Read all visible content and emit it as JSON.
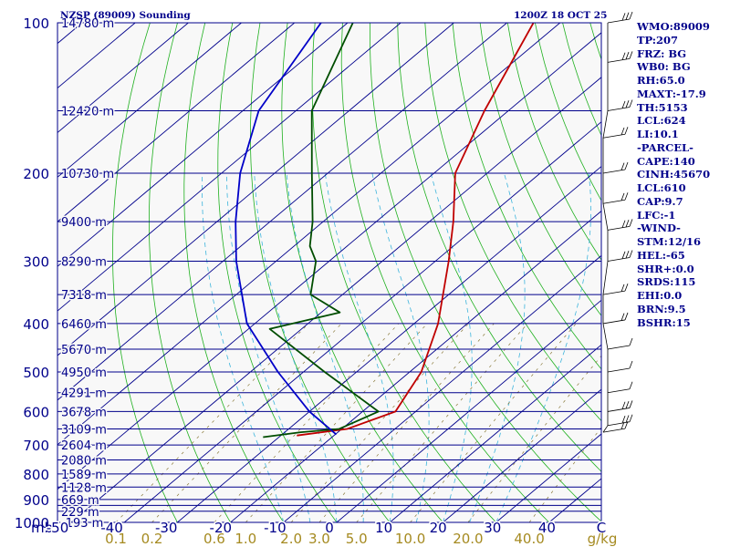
{
  "header": {
    "title": "NZSP (89009) Sounding",
    "time": "1200Z 18 OCT 25"
  },
  "colors": {
    "background": "#ffffff",
    "plot_background": "#f8f8f8",
    "isobar": "#00008b",
    "dry_adiabat": "#1fb01f",
    "moist_adiabat": "#3cb4dc",
    "mixing_ratio": "#8a7a3a",
    "temperature": "#c00000",
    "dewpoint": "#004d00",
    "parcel": "#0000c8",
    "text": "#00008b",
    "mixing_label": "#a58a20"
  },
  "indices": [
    "WMO:89009",
    "TP:207",
    "FRZ: BG",
    "WB0: BG",
    "RH:65.0",
    "MAXT:-17.9",
    "TH:5153",
    "LCL:624",
    "LI:10.1",
    "-PARCEL-",
    "CAPE:140",
    "CINH:45670",
    "LCL:610",
    "CAP:9.7",
    "LFC:-1",
    "-WIND-",
    "STM:12/16",
    "HEL:-65",
    "SHR+:0.0",
    "SRDS:115",
    "EHI:0.0",
    "BRN:9.5",
    "BSHR:15"
  ],
  "chart_data": {
    "type": "skew-t",
    "x_axis": {
      "label": "mb",
      "range": [
        -50,
        50
      ],
      "ticks": [
        "-50",
        "-40",
        "-30",
        "-20",
        "-10",
        "0",
        "10",
        "20",
        "30",
        "40",
        "C"
      ]
    },
    "y_axis": {
      "scale": "log",
      "range_hpa": [
        1000,
        100
      ],
      "ticks": [
        "100",
        "200",
        "300",
        "400",
        "500",
        "600",
        "700",
        "800",
        "900",
        "1000"
      ]
    },
    "isobars_hpa": [
      100,
      150,
      200,
      250,
      300,
      350,
      400,
      450,
      500,
      550,
      600,
      650,
      700,
      750,
      800,
      850,
      900,
      925,
      950,
      1000
    ],
    "height_labels": [
      {
        "p": 100,
        "text": "14780 m"
      },
      {
        "p": 150,
        "text": "12420 m"
      },
      {
        "p": 200,
        "text": "10730 m"
      },
      {
        "p": 250,
        "text": "9400 m"
      },
      {
        "p": 300,
        "text": "8290 m"
      },
      {
        "p": 350,
        "text": "7318 m"
      },
      {
        "p": 400,
        "text": "6460 m"
      },
      {
        "p": 450,
        "text": "5670 m"
      },
      {
        "p": 500,
        "text": "4950 m"
      },
      {
        "p": 550,
        "text": "4291 m"
      },
      {
        "p": 600,
        "text": "3678 m"
      },
      {
        "p": 650,
        "text": "3109 m"
      },
      {
        "p": 700,
        "text": "2604 m"
      },
      {
        "p": 750,
        "text": "2080 m"
      },
      {
        "p": 800,
        "text": "1589 m"
      },
      {
        "p": 850,
        "text": "1128 m"
      },
      {
        "p": 900,
        "text": "669 m"
      },
      {
        "p": 950,
        "text": "229 m"
      },
      {
        "p": 1000,
        "text": "-193 m"
      }
    ],
    "mixing_ratio_labels": [
      "0.1",
      "0.2",
      "0.6",
      "1.0",
      "2.0",
      "3.0",
      "5.0",
      "10.0",
      "20.0",
      "40.0",
      "g/kg"
    ],
    "mixing_ratio_gkg": [
      0.1,
      0.2,
      0.6,
      1.0,
      2.0,
      3.0,
      5.0,
      10.0,
      20.0,
      40.0
    ],
    "series": [
      {
        "kind": "temperature",
        "points": [
          {
            "p": 100,
            "t": -75.0
          },
          {
            "p": 150,
            "t": -64.5
          },
          {
            "p": 200,
            "t": -56.0
          },
          {
            "p": 250,
            "t": -45.5
          },
          {
            "p": 300,
            "t": -37.5
          },
          {
            "p": 400,
            "t": -25.5
          },
          {
            "p": 500,
            "t": -17.8
          },
          {
            "p": 600,
            "t": -13.8
          },
          {
            "p": 650,
            "t": -19.0
          },
          {
            "p": 670,
            "t": -27.0
          }
        ]
      },
      {
        "kind": "dewpoint",
        "points": [
          {
            "p": 100,
            "t": -109.0
          },
          {
            "p": 150,
            "t": -97.0
          },
          {
            "p": 200,
            "t": -83.0
          },
          {
            "p": 250,
            "t": -72.0
          },
          {
            "p": 280,
            "t": -67.0
          },
          {
            "p": 300,
            "t": -62.5
          },
          {
            "p": 350,
            "t": -56.0
          },
          {
            "p": 380,
            "t": -46.5
          },
          {
            "p": 410,
            "t": -56.0
          },
          {
            "p": 500,
            "t": -36.0
          },
          {
            "p": 600,
            "t": -17.0
          },
          {
            "p": 650,
            "t": -20.5
          },
          {
            "p": 660,
            "t": -27.0
          },
          {
            "p": 675,
            "t": -33.0
          }
        ]
      },
      {
        "kind": "parcel",
        "points": [
          {
            "p": 100,
            "t": -115.0
          },
          {
            "p": 150,
            "t": -107.0
          },
          {
            "p": 200,
            "t": -96.5
          },
          {
            "p": 250,
            "t": -86.5
          },
          {
            "p": 300,
            "t": -77.5
          },
          {
            "p": 400,
            "t": -61.5
          },
          {
            "p": 500,
            "t": -44.8
          },
          {
            "p": 600,
            "t": -30.0
          },
          {
            "p": 667,
            "t": -19.8
          }
        ]
      }
    ],
    "wind_profile": [
      {
        "p": 100,
        "spd": 15
      },
      {
        "p": 120,
        "spd": 15
      },
      {
        "p": 150,
        "spd": 15
      },
      {
        "p": 170,
        "spd": 10
      },
      {
        "p": 200,
        "spd": 10
      },
      {
        "p": 230,
        "spd": 10
      },
      {
        "p": 260,
        "spd": 15
      },
      {
        "p": 300,
        "spd": 15
      },
      {
        "p": 350,
        "spd": 10
      },
      {
        "p": 400,
        "spd": 10
      },
      {
        "p": 450,
        "spd": 5
      },
      {
        "p": 500,
        "spd": 5
      },
      {
        "p": 550,
        "spd": 5
      },
      {
        "p": 600,
        "spd": 15
      },
      {
        "p": 640,
        "spd": 15
      },
      {
        "p": 660,
        "spd": 10
      }
    ]
  }
}
